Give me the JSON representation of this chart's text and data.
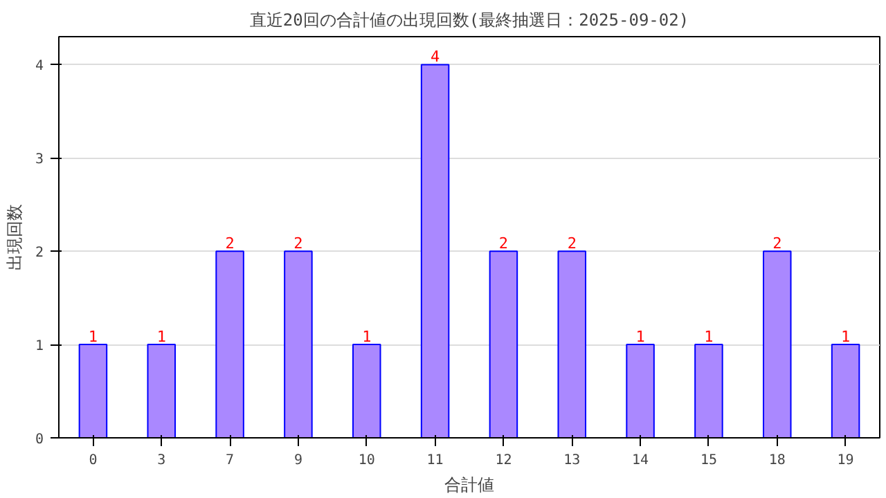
{
  "chart_data": {
    "type": "bar",
    "title": "直近20回の合計値の出現回数(最終抽選日：2025-09-02)",
    "xlabel": "合計値",
    "ylabel": "出現回数",
    "categories": [
      "0",
      "3",
      "7",
      "9",
      "10",
      "11",
      "12",
      "13",
      "14",
      "15",
      "18",
      "19"
    ],
    "values": [
      1,
      1,
      2,
      2,
      1,
      4,
      2,
      2,
      1,
      1,
      2,
      1
    ],
    "color": "#aa88ff",
    "ylim": [
      0,
      4.3
    ],
    "yticks": [
      0,
      1,
      2,
      3,
      4
    ],
    "grid": "y",
    "data_labels": true
  }
}
